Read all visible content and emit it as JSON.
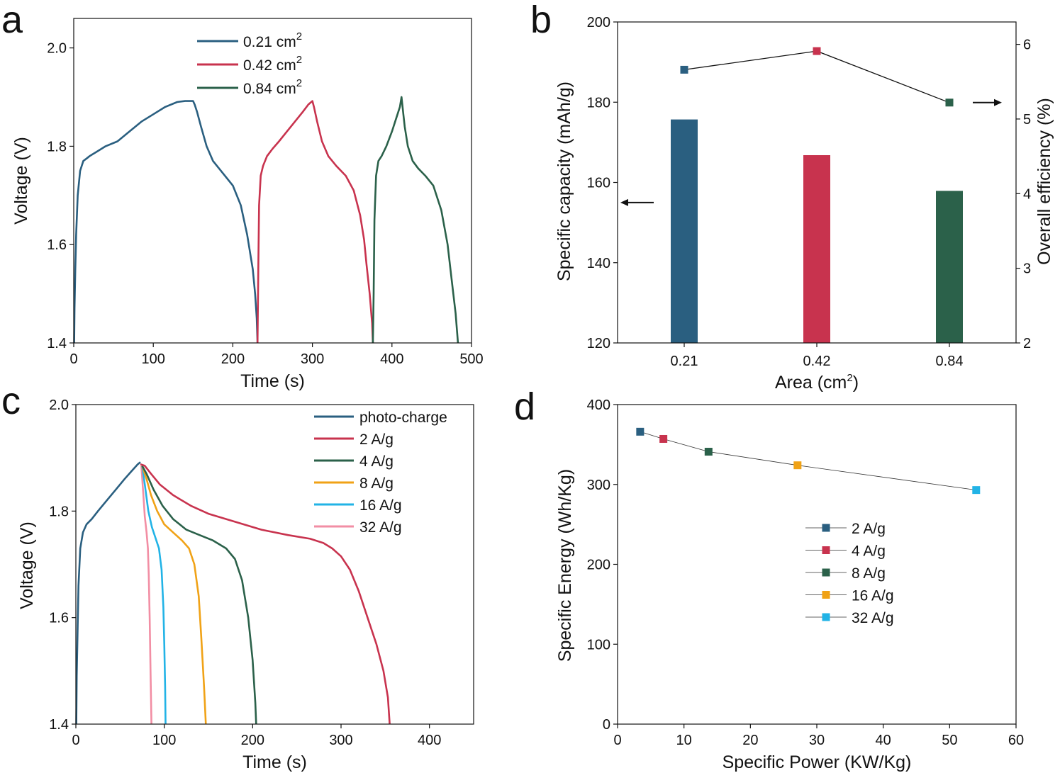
{
  "chart_data": [
    {
      "panel": "a",
      "type": "line",
      "xlabel": "Time (s)",
      "ylabel": "Voltage (V)",
      "xlim": [
        0,
        500
      ],
      "ylim": [
        1.4,
        2.06
      ],
      "xticks": [
        "0",
        "100",
        "200",
        "300",
        "400",
        "500"
      ],
      "yticks": [
        "1.4",
        "1.6",
        "1.8",
        "2.0"
      ],
      "legend": {
        "position": "top-center"
      },
      "series": [
        {
          "name": "0.21 cm",
          "sup": "2",
          "color": "#2a5f80",
          "x": [
            0.5,
            1,
            2,
            3,
            5,
            8,
            12,
            16,
            20,
            30,
            40,
            55,
            70,
            85,
            100,
            115,
            130,
            140,
            150,
            152,
            155,
            160,
            167,
            175,
            185,
            200,
            210,
            218,
            225,
            228,
            230,
            231
          ],
          "y": [
            1.4,
            1.47,
            1.55,
            1.62,
            1.7,
            1.75,
            1.77,
            1.775,
            1.78,
            1.79,
            1.8,
            1.81,
            1.83,
            1.85,
            1.865,
            1.88,
            1.89,
            1.892,
            1.892,
            1.885,
            1.87,
            1.84,
            1.8,
            1.77,
            1.75,
            1.72,
            1.68,
            1.62,
            1.55,
            1.5,
            1.45,
            1.4
          ]
        },
        {
          "name": "0.42 cm",
          "sup": "2",
          "color": "#c8334e",
          "x": [
            231,
            232,
            233,
            235,
            238,
            243,
            250,
            258,
            268,
            278,
            288,
            295,
            300,
            302,
            306,
            312,
            320,
            330,
            342,
            352,
            360,
            365,
            368,
            372,
            375,
            376
          ],
          "y": [
            1.4,
            1.55,
            1.68,
            1.74,
            1.76,
            1.78,
            1.795,
            1.81,
            1.83,
            1.85,
            1.87,
            1.885,
            1.892,
            1.88,
            1.85,
            1.81,
            1.78,
            1.76,
            1.74,
            1.71,
            1.66,
            1.61,
            1.56,
            1.5,
            1.44,
            1.4
          ]
        },
        {
          "name": "0.84 cm",
          "sup": "2",
          "color": "#2b614a",
          "x": [
            376,
            377,
            378,
            380,
            383,
            387,
            393,
            400,
            406,
            410,
            412,
            414,
            416,
            420,
            426,
            433,
            442,
            452,
            462,
            470,
            475,
            480,
            482,
            483
          ],
          "y": [
            1.4,
            1.5,
            1.65,
            1.74,
            1.77,
            1.78,
            1.8,
            1.83,
            1.86,
            1.88,
            1.9,
            1.87,
            1.84,
            1.8,
            1.77,
            1.755,
            1.74,
            1.72,
            1.67,
            1.6,
            1.53,
            1.46,
            1.42,
            1.4
          ]
        }
      ]
    },
    {
      "panel": "b",
      "type": "bar",
      "xlabel": "Area (cm",
      "xlabel_sup": "2",
      "xlabel_end": ")",
      "ylabel": "Specific capacity (mAh/g)",
      "ylabel_right": "Overall efficiency (%)",
      "categories": [
        "0.21",
        "0.42",
        "0.84"
      ],
      "ylim": [
        120,
        200
      ],
      "yticks": [
        "120",
        "140",
        "160",
        "180",
        "200"
      ],
      "ylim_right": [
        2,
        6.3
      ],
      "yticks_right": [
        "2",
        "3",
        "4",
        "5",
        "6"
      ],
      "series": [
        {
          "name": "Specific capacity",
          "axis": "left",
          "values": [
            175.7,
            166.8,
            157.9
          ],
          "colors": [
            "#2a5f80",
            "#c8334e",
            "#2b614a"
          ]
        },
        {
          "name": "Overall efficiency",
          "axis": "right",
          "values": [
            5.66,
            5.91,
            5.22
          ],
          "colors": [
            "#2a5f80",
            "#c8334e",
            "#2b614a"
          ]
        }
      ],
      "annotations": [
        {
          "type": "arrow",
          "points_to": "left axis",
          "at_value": 155
        },
        {
          "type": "arrow",
          "points_to": "right axis",
          "at_value": 5.22
        }
      ]
    },
    {
      "panel": "c",
      "type": "line",
      "xlabel": "Time (s)",
      "ylabel": "Voltage (V)",
      "xlim": [
        0,
        450
      ],
      "ylim": [
        1.4,
        2.0
      ],
      "xticks": [
        "0",
        "100",
        "200",
        "300",
        "400"
      ],
      "yticks": [
        "1.4",
        "1.6",
        "1.8",
        "2.0"
      ],
      "legend": {
        "position": "top-right"
      },
      "series": [
        {
          "name": "photo-charge",
          "color": "#2a5f80",
          "x": [
            0.5,
            1,
            2,
            3,
            5,
            8,
            12,
            18,
            25,
            35,
            45,
            55,
            63,
            70,
            73
          ],
          "y": [
            1.4,
            1.49,
            1.58,
            1.66,
            1.73,
            1.76,
            1.775,
            1.785,
            1.8,
            1.82,
            1.84,
            1.86,
            1.875,
            1.888,
            1.892
          ]
        },
        {
          "name": "2 A/g",
          "color": "#c8334e",
          "x": [
            73,
            78,
            85,
            95,
            110,
            130,
            150,
            180,
            210,
            240,
            265,
            280,
            290,
            300,
            310,
            320,
            330,
            340,
            348,
            353,
            355
          ],
          "y": [
            1.888,
            1.885,
            1.87,
            1.85,
            1.83,
            1.81,
            1.795,
            1.78,
            1.765,
            1.755,
            1.748,
            1.74,
            1.73,
            1.715,
            1.69,
            1.65,
            1.6,
            1.55,
            1.5,
            1.45,
            1.4
          ]
        },
        {
          "name": "4 A/g",
          "color": "#2b614a",
          "x": [
            75,
            80,
            88,
            98,
            110,
            125,
            140,
            155,
            170,
            180,
            188,
            195,
            200,
            203,
            204
          ],
          "y": [
            1.885,
            1.87,
            1.84,
            1.81,
            1.785,
            1.765,
            1.755,
            1.745,
            1.73,
            1.71,
            1.67,
            1.6,
            1.52,
            1.44,
            1.4
          ]
        },
        {
          "name": "8 A/g",
          "color": "#f0a216",
          "x": [
            75,
            80,
            85,
            92,
            100,
            110,
            120,
            128,
            134,
            139,
            142,
            145,
            147
          ],
          "y": [
            1.885,
            1.86,
            1.83,
            1.8,
            1.775,
            1.76,
            1.745,
            1.73,
            1.7,
            1.64,
            1.56,
            1.47,
            1.4
          ]
        },
        {
          "name": "16 A/g",
          "color": "#22b3e6",
          "x": [
            75,
            78,
            82,
            86,
            90,
            94,
            97,
            99,
            100,
            101,
            101.5
          ],
          "y": [
            1.885,
            1.85,
            1.8,
            1.77,
            1.75,
            1.73,
            1.69,
            1.62,
            1.55,
            1.47,
            1.4
          ]
        },
        {
          "name": "32 A/g",
          "color": "#f28ea4",
          "x": [
            74,
            76,
            78,
            80,
            81.5,
            82.5,
            83.5,
            84.5,
            85.5
          ],
          "y": [
            1.885,
            1.84,
            1.79,
            1.76,
            1.73,
            1.68,
            1.6,
            1.5,
            1.4
          ]
        }
      ]
    },
    {
      "panel": "d",
      "type": "scatter",
      "xlabel": "Specific Power (KW/Kg)",
      "ylabel": "Specific Energy (Wh/Kg)",
      "xlim": [
        0,
        60
      ],
      "ylim": [
        0,
        400
      ],
      "xticks": [
        "0",
        "10",
        "20",
        "30",
        "40",
        "50",
        "60"
      ],
      "yticks": [
        "0",
        "100",
        "200",
        "300",
        "400"
      ],
      "legend": {
        "position": "center"
      },
      "series": [
        {
          "name": "2 A/g",
          "color": "#2a5f80",
          "x": 3.4,
          "y": 366
        },
        {
          "name": "4 A/g",
          "color": "#c8334e",
          "x": 6.9,
          "y": 357
        },
        {
          "name": "8 A/g",
          "color": "#2b614a",
          "x": 13.7,
          "y": 341
        },
        {
          "name": "16 A/g",
          "color": "#f0a216",
          "x": 27.1,
          "y": 324
        },
        {
          "name": "32 A/g",
          "color": "#22b3e6",
          "x": 54.0,
          "y": 293
        }
      ]
    }
  ],
  "panel_labels": {
    "a": "a",
    "b": "b",
    "c": "c",
    "d": "d"
  }
}
